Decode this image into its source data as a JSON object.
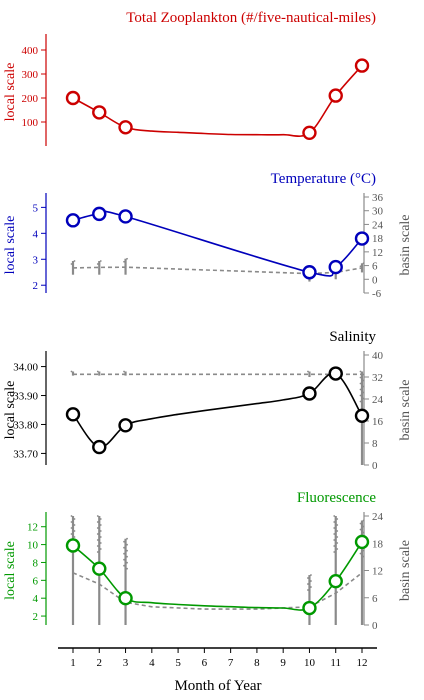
{
  "chart_data": [
    {
      "type": "line",
      "title": "Total Zooplankton (#/five-nautical-miles)",
      "ylabel": "local scale",
      "color": "#cc0000",
      "ylim": [
        0,
        450
      ],
      "yticks": [
        100,
        200,
        300,
        400
      ],
      "ytick_labels": [
        "100",
        "200",
        "300",
        "400"
      ],
      "points": [
        {
          "x": 1,
          "y": 200
        },
        {
          "x": 2,
          "y": 140
        },
        {
          "x": 3,
          "y": 78
        },
        {
          "x": 10,
          "y": 55
        },
        {
          "x": 11,
          "y": 210
        },
        {
          "x": 12,
          "y": 335
        }
      ],
      "curve": [
        [
          1,
          200
        ],
        [
          2,
          140
        ],
        [
          3,
          78
        ],
        [
          4,
          62
        ],
        [
          5,
          57
        ],
        [
          6,
          52
        ],
        [
          7,
          48
        ],
        [
          8,
          47
        ],
        [
          9,
          47
        ],
        [
          10,
          55
        ],
        [
          11,
          210
        ],
        [
          12,
          335
        ]
      ]
    },
    {
      "type": "line",
      "title": "Temperature (°C)",
      "ylabel": "local scale",
      "ylabel_right": "basin scale",
      "color": "#0000bb",
      "ylim": [
        1.7,
        5.4
      ],
      "yticks": [
        2,
        3,
        4,
        5
      ],
      "ytick_labels": [
        "2",
        "3",
        "4",
        "5"
      ],
      "y2lim": [
        -6,
        36
      ],
      "y2ticks": [
        -6,
        0,
        6,
        12,
        18,
        24,
        30,
        36
      ],
      "y2tick_labels": [
        "-6",
        "0",
        "6",
        "12",
        "18",
        "24",
        "30",
        "36"
      ],
      "points": [
        {
          "x": 1,
          "y": 4.5
        },
        {
          "x": 2,
          "y": 4.75
        },
        {
          "x": 3,
          "y": 4.65
        },
        {
          "x": 10,
          "y": 2.5
        },
        {
          "x": 11,
          "y": 2.7
        },
        {
          "x": 12,
          "y": 3.8
        }
      ],
      "curve": [
        [
          1,
          4.5
        ],
        [
          2,
          4.75
        ],
        [
          3,
          4.65
        ],
        [
          10,
          2.5
        ],
        [
          11,
          2.7
        ],
        [
          12,
          3.8
        ]
      ],
      "basin_mean": [
        [
          1,
          5
        ],
        [
          2,
          5.2
        ],
        [
          3,
          5.3
        ],
        [
          10,
          2.5
        ],
        [
          11,
          3
        ],
        [
          12,
          5
        ]
      ],
      "basin_range": [
        {
          "x": 1,
          "low": 2,
          "high": 8
        },
        {
          "x": 2,
          "low": 2,
          "high": 8
        },
        {
          "x": 3,
          "low": 2,
          "high": 9
        },
        {
          "x": 10,
          "low": -1,
          "high": 3
        },
        {
          "x": 11,
          "low": 0,
          "high": 5
        },
        {
          "x": 12,
          "low": 3,
          "high": 7
        }
      ]
    },
    {
      "type": "line",
      "title": "Salinity",
      "ylabel": "local scale",
      "ylabel_right": "basin scale",
      "color": "#000000",
      "ylim": [
        33.66,
        34.04
      ],
      "yticks": [
        33.7,
        33.8,
        33.9,
        34.0
      ],
      "ytick_labels": [
        "33.70",
        "33.80",
        "33.90",
        "34.00"
      ],
      "y2lim": [
        0,
        40
      ],
      "y2ticks": [
        0,
        8,
        16,
        24,
        32,
        40
      ],
      "y2tick_labels": [
        "0",
        "8",
        "16",
        "24",
        "32",
        "40"
      ],
      "points": [
        {
          "x": 1,
          "y": 33.835
        },
        {
          "x": 2,
          "y": 33.722
        },
        {
          "x": 3,
          "y": 33.797
        },
        {
          "x": 10,
          "y": 33.907
        },
        {
          "x": 11,
          "y": 33.976
        },
        {
          "x": 12,
          "y": 33.83
        }
      ],
      "curve": [
        [
          1,
          33.835
        ],
        [
          2,
          33.722
        ],
        [
          3,
          33.797
        ],
        [
          4,
          33.82
        ],
        [
          5,
          33.835
        ],
        [
          6,
          33.848
        ],
        [
          7,
          33.86
        ],
        [
          8,
          33.872
        ],
        [
          9,
          33.885
        ],
        [
          10,
          33.907
        ],
        [
          11,
          33.976
        ],
        [
          12,
          33.83
        ]
      ],
      "basin_mean": [
        [
          1,
          33
        ],
        [
          2,
          33
        ],
        [
          3,
          33
        ],
        [
          10,
          33
        ],
        [
          11,
          33
        ],
        [
          12,
          33
        ]
      ],
      "basin_range": [
        {
          "x": 1,
          "low": 32.5,
          "high": 34
        },
        {
          "x": 2,
          "low": 32.5,
          "high": 34
        },
        {
          "x": 3,
          "low": 32.5,
          "high": 34
        },
        {
          "x": 10,
          "low": 32,
          "high": 34
        },
        {
          "x": 11,
          "low": 32,
          "high": 34
        },
        {
          "x": 12,
          "low": 0,
          "high": 34
        }
      ]
    },
    {
      "type": "line",
      "title": "Fluorescence",
      "ylabel": "local scale",
      "ylabel_right": "basin scale",
      "color": "#009900",
      "ylim": [
        1,
        13.2
      ],
      "yticks": [
        2,
        4,
        6,
        8,
        10,
        12
      ],
      "ytick_labels": [
        "2",
        "4",
        "6",
        "8",
        "10",
        "12"
      ],
      "y2lim": [
        0,
        24
      ],
      "y2ticks": [
        0,
        6,
        12,
        18,
        24
      ],
      "y2tick_labels": [
        "0",
        "6",
        "12",
        "18",
        "24"
      ],
      "points": [
        {
          "x": 1,
          "y": 9.9
        },
        {
          "x": 2,
          "y": 7.3
        },
        {
          "x": 3,
          "y": 4.0
        },
        {
          "x": 10,
          "y": 2.9
        },
        {
          "x": 11,
          "y": 5.9
        },
        {
          "x": 12,
          "y": 10.3
        }
      ],
      "curve": [
        [
          1,
          9.9
        ],
        [
          2,
          7.3
        ],
        [
          3,
          4.0
        ],
        [
          4,
          3.5
        ],
        [
          5,
          3.3
        ],
        [
          6,
          3.15
        ],
        [
          7,
          3.05
        ],
        [
          8,
          2.95
        ],
        [
          9,
          2.9
        ],
        [
          10,
          2.9
        ],
        [
          11,
          5.9
        ],
        [
          12,
          10.3
        ]
      ],
      "basin_mean": [
        [
          1,
          11.5
        ],
        [
          2,
          9
        ],
        [
          3,
          5
        ],
        [
          4,
          4
        ],
        [
          6,
          3.5
        ],
        [
          8,
          3.5
        ],
        [
          10,
          4
        ],
        [
          11,
          7
        ],
        [
          12,
          11.5
        ]
      ],
      "basin_range": [
        {
          "x": 1,
          "low": 0,
          "high": 24
        },
        {
          "x": 2,
          "low": 0,
          "high": 24
        },
        {
          "x": 3,
          "low": 0,
          "high": 19
        },
        {
          "x": 10,
          "low": 0,
          "high": 11
        },
        {
          "x": 11,
          "low": 0,
          "high": 24
        },
        {
          "x": 12,
          "low": 0,
          "high": 23
        }
      ]
    }
  ],
  "x_axis": {
    "label": "Month of Year",
    "ticks": [
      1,
      2,
      3,
      4,
      5,
      6,
      7,
      8,
      9,
      10,
      11,
      12
    ],
    "tick_labels": [
      "1",
      "2",
      "3",
      "4",
      "5",
      "6",
      "7",
      "8",
      "9",
      "10",
      "11",
      "12"
    ],
    "xlim": [
      0.6,
      12.4
    ]
  },
  "colors": {
    "basin": "#8a8a8a",
    "axis": "#000000"
  }
}
